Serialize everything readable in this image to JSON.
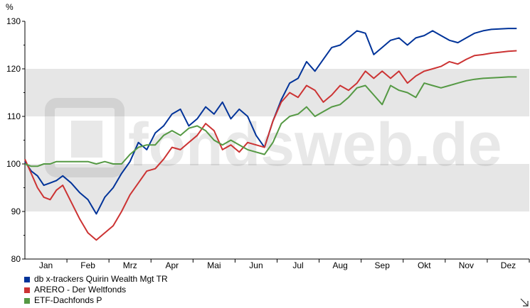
{
  "colors": {
    "band": "#e6e6e6",
    "series": [
      "#003399",
      "#cc3333",
      "#559944"
    ]
  },
  "icons": {
    "resize": "resize-corner-icon"
  },
  "chart_data": {
    "type": "line",
    "title": "",
    "xlabel": "",
    "ylabel": "%",
    "ylim": [
      80,
      130
    ],
    "yticks": [
      80,
      90,
      100,
      110,
      120,
      130
    ],
    "grid": "alternating-horizontal-bands",
    "legend_position": "bottom-left",
    "x_months": [
      "Jan",
      "Feb",
      "Mrz",
      "Apr",
      "Mai",
      "Jun",
      "Jul",
      "Aug",
      "Sep",
      "Okt",
      "Nov",
      "Dez"
    ],
    "x": [
      0.0,
      0.15,
      0.3,
      0.45,
      0.6,
      0.75,
      0.9,
      1.1,
      1.3,
      1.5,
      1.7,
      1.9,
      2.1,
      2.3,
      2.5,
      2.7,
      2.9,
      3.1,
      3.3,
      3.5,
      3.7,
      3.9,
      4.1,
      4.3,
      4.5,
      4.7,
      4.9,
      5.1,
      5.3,
      5.5,
      5.7,
      5.9,
      6.1,
      6.3,
      6.5,
      6.7,
      6.9,
      7.1,
      7.3,
      7.5,
      7.7,
      7.9,
      8.1,
      8.3,
      8.5,
      8.7,
      8.9,
      9.1,
      9.3,
      9.5,
      9.7,
      9.9,
      10.1,
      10.3,
      10.5,
      10.7,
      10.9,
      11.1,
      11.3,
      11.5,
      11.7
    ],
    "series": [
      {
        "name": "db x-trackers Quirin Wealth Mgt TR",
        "values": [
          100.5,
          98.5,
          97.5,
          95.5,
          96.0,
          96.5,
          97.5,
          96.0,
          94.0,
          92.5,
          89.5,
          93.0,
          95.0,
          98.0,
          100.5,
          104.5,
          103.0,
          106.5,
          108.0,
          110.5,
          111.5,
          108.0,
          109.5,
          112.0,
          110.5,
          113.0,
          109.5,
          111.5,
          110.0,
          106.0,
          103.5,
          109.0,
          113.5,
          117.0,
          118.0,
          121.5,
          119.5,
          122.0,
          124.5,
          125.0,
          126.5,
          128.0,
          127.5,
          123.0,
          124.5,
          126.0,
          126.5,
          125.0,
          126.5,
          127.0,
          128.0,
          127.0,
          126.0,
          125.5,
          126.5,
          127.5,
          128.0,
          128.3,
          128.4,
          128.5,
          128.5
        ]
      },
      {
        "name": "ARERO - Der Weltfonds",
        "values": [
          101.0,
          98.0,
          95.0,
          93.0,
          92.5,
          94.5,
          95.5,
          92.0,
          88.5,
          85.5,
          84.0,
          85.5,
          87.0,
          90.0,
          93.5,
          96.0,
          98.5,
          99.0,
          101.0,
          103.5,
          103.0,
          104.5,
          106.0,
          108.5,
          107.0,
          103.0,
          104.0,
          102.5,
          104.5,
          104.0,
          103.5,
          109.0,
          113.0,
          115.0,
          114.0,
          116.5,
          115.5,
          113.0,
          114.5,
          116.5,
          115.5,
          117.0,
          119.5,
          118.0,
          119.5,
          118.0,
          119.5,
          117.0,
          118.5,
          119.5,
          120.0,
          120.5,
          121.5,
          121.0,
          122.0,
          122.8,
          123.0,
          123.3,
          123.5,
          123.7,
          123.8
        ]
      },
      {
        "name": "ETF-Dachfonds P",
        "values": [
          100.0,
          99.5,
          99.5,
          100.0,
          100.0,
          100.5,
          100.5,
          100.5,
          100.5,
          100.5,
          100.0,
          100.5,
          100.0,
          100.0,
          102.0,
          103.5,
          104.0,
          104.0,
          106.0,
          107.0,
          106.0,
          107.5,
          108.0,
          107.0,
          105.0,
          104.0,
          105.0,
          104.0,
          103.0,
          102.5,
          102.0,
          104.5,
          108.5,
          110.0,
          110.5,
          112.0,
          110.0,
          111.0,
          112.0,
          112.5,
          114.0,
          116.0,
          116.5,
          114.5,
          112.5,
          116.5,
          115.5,
          115.0,
          114.0,
          117.0,
          116.5,
          116.0,
          116.5,
          117.0,
          117.5,
          117.8,
          118.0,
          118.1,
          118.2,
          118.3,
          118.3
        ]
      }
    ]
  }
}
